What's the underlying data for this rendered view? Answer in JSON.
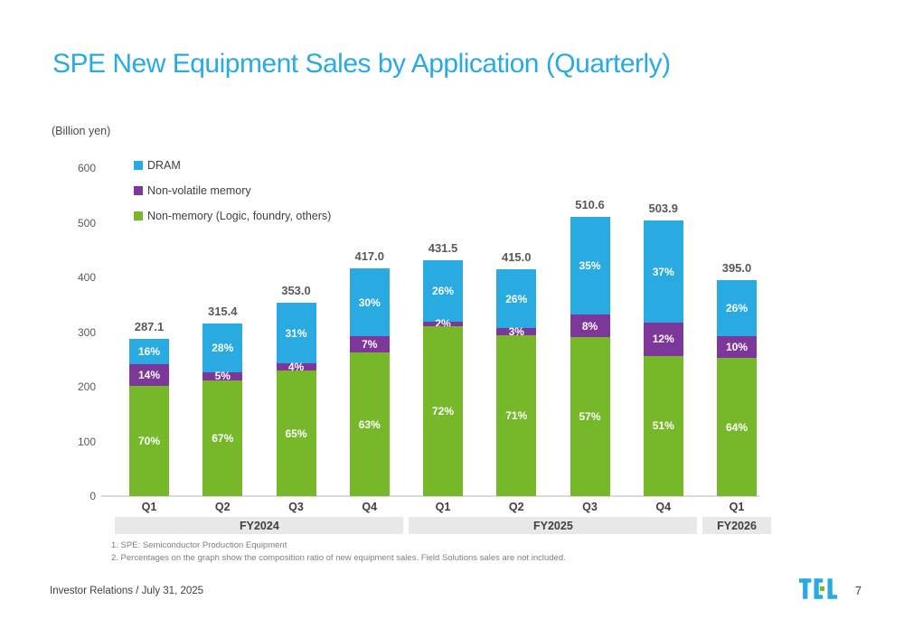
{
  "slide": {
    "title": "SPE New Equipment Sales by Application (Quarterly)",
    "unit_label": "(Billion yen)",
    "footnotes": [
      "1. SPE: Semiconductor Production Equipment",
      "2. Percentages on the graph show the composition ratio of new equipment sales. Field Solutions sales are not included."
    ],
    "footer_left": "Investor Relations / July 31, 2025",
    "page_number": "7",
    "logo_name": "TEL"
  },
  "colors": {
    "title": "#29abe2",
    "dram": "#29abe2",
    "non_volatile": "#7d3699",
    "non_memory": "#76b82a",
    "band_bg": "#e8e8e8",
    "axis_line": "#d9d9d9",
    "total_text": "#595959",
    "logo_cyan": "#29abe2",
    "logo_green": "#76b82a"
  },
  "chart_data": {
    "type": "bar",
    "stacked": true,
    "title": "SPE New Equipment Sales by Application (Quarterly)",
    "unit": "Billion yen",
    "grid": false,
    "legend_position": "top-left",
    "categories": [
      "Q1",
      "Q2",
      "Q3",
      "Q4",
      "Q1",
      "Q2",
      "Q3",
      "Q4",
      "Q1"
    ],
    "groups": [
      {
        "label": "FY2024",
        "span": 4
      },
      {
        "label": "FY2025",
        "span": 4
      },
      {
        "label": "FY2026",
        "span": 1
      }
    ],
    "totals": [
      287.1,
      315.4,
      353.0,
      417.0,
      431.5,
      415.0,
      510.6,
      503.9,
      395.0
    ],
    "total_labels": [
      "287.1",
      "315.4",
      "353.0",
      "417.0",
      "431.5",
      "415.0",
      "510.6",
      "503.9",
      "395.0"
    ],
    "series": [
      {
        "name": "DRAM",
        "color": "#29abe2",
        "pct": [
          16,
          28,
          31,
          30,
          26,
          26,
          35,
          37,
          26
        ]
      },
      {
        "name": "Non-volatile memory",
        "color": "#7d3699",
        "pct": [
          14,
          5,
          4,
          7,
          2,
          3,
          8,
          12,
          10
        ]
      },
      {
        "name": "Non-memory (Logic, foundry, others)",
        "color": "#76b82a",
        "pct": [
          70,
          67,
          65,
          63,
          72,
          71,
          57,
          51,
          64
        ]
      }
    ],
    "pct_labels": [
      [
        "16%",
        "28%",
        "31%",
        "30%",
        "26%",
        "26%",
        "35%",
        "37%",
        "26%"
      ],
      [
        "14%",
        "5%",
        "4%",
        "7%",
        "2%",
        "3%",
        "8%",
        "12%",
        "10%"
      ],
      [
        "70%",
        "67%",
        "65%",
        "63%",
        "72%",
        "71%",
        "57%",
        "51%",
        "64%"
      ]
    ],
    "y_axis": {
      "min": 0,
      "max": 600,
      "step": 100,
      "ticks": [
        "0",
        "100",
        "200",
        "300",
        "400",
        "500",
        "600"
      ]
    }
  }
}
